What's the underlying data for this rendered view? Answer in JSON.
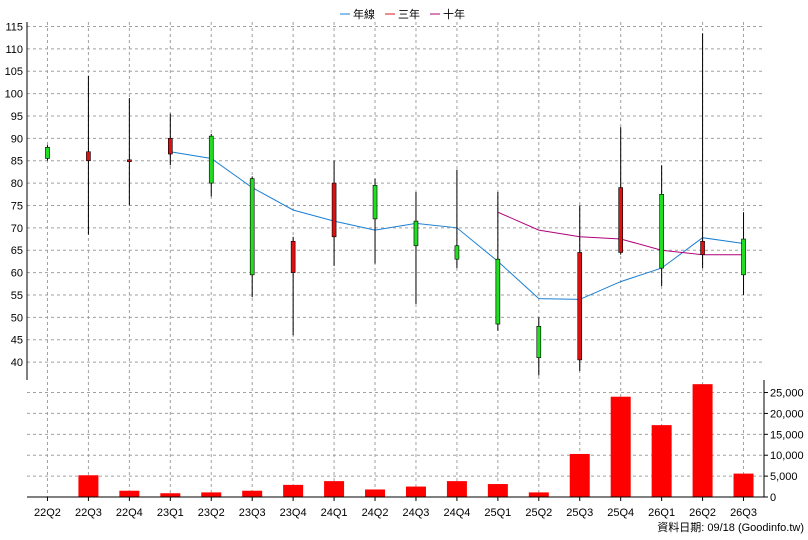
{
  "chart_data": {
    "type": "candlestick",
    "legend": {
      "placement": "top-center",
      "entries": [
        {
          "label": "年線",
          "color": "#1a7fd4"
        },
        {
          "label": "三年",
          "color": "#d41a1a"
        },
        {
          "label": "十年",
          "color": "#b0007a"
        }
      ]
    },
    "categories": [
      "22Q2",
      "22Q3",
      "22Q4",
      "23Q1",
      "23Q2",
      "23Q3",
      "23Q4",
      "24Q1",
      "24Q2",
      "24Q3",
      "24Q4",
      "25Q1",
      "25Q2",
      "25Q3",
      "25Q4",
      "26Q1",
      "26Q2",
      "26Q3"
    ],
    "price_axis": {
      "ylim": [
        36,
        116
      ],
      "ticks": [
        40,
        45,
        50,
        55,
        60,
        65,
        70,
        75,
        80,
        85,
        90,
        95,
        100,
        105,
        110,
        115
      ]
    },
    "volume_axis": {
      "ylim": [
        0,
        28000
      ],
      "ticks": [
        0,
        5000,
        10000,
        15000,
        20000,
        25000
      ],
      "tick_labels": [
        "0",
        "5,000",
        "10,000",
        "15,000",
        "20,000",
        "25,000"
      ]
    },
    "candles": [
      {
        "open": 85.5,
        "high": 88.5,
        "low": 85.0,
        "close": 88.0,
        "color": "green"
      },
      {
        "open": 87.0,
        "high": 104.0,
        "low": 68.5,
        "close": 85.0,
        "color": "red"
      },
      {
        "open": 85.2,
        "high": 99.0,
        "low": 75.0,
        "close": 84.8,
        "color": "red"
      },
      {
        "open": 90.0,
        "high": 95.5,
        "low": 84.0,
        "close": 86.5,
        "color": "red"
      },
      {
        "open": 80.0,
        "high": 91.0,
        "low": 77.0,
        "close": 90.5,
        "color": "green"
      },
      {
        "open": 59.5,
        "high": 81.5,
        "low": 54.5,
        "close": 81.0,
        "color": "green"
      },
      {
        "open": 67.0,
        "high": 68.0,
        "low": 46.0,
        "close": 60.0,
        "color": "red"
      },
      {
        "open": 80.0,
        "high": 85.0,
        "low": 61.5,
        "close": 68.0,
        "color": "red"
      },
      {
        "open": 72.0,
        "high": 81.0,
        "low": 62.0,
        "close": 79.5,
        "color": "green"
      },
      {
        "open": 66.0,
        "high": 78.0,
        "low": 53.0,
        "close": 71.5,
        "color": "green"
      },
      {
        "open": 63.0,
        "high": 83.0,
        "low": 61.0,
        "close": 66.0,
        "color": "green"
      },
      {
        "open": 48.5,
        "high": 78.0,
        "low": 47.0,
        "close": 63.0,
        "color": "green"
      },
      {
        "open": 41.0,
        "high": 50.0,
        "low": 37.0,
        "close": 48.0,
        "color": "green"
      },
      {
        "open": 64.5,
        "high": 75.0,
        "low": 38.0,
        "close": 40.5,
        "color": "red"
      },
      {
        "open": 79.0,
        "high": 92.5,
        "low": 64.0,
        "close": 64.5,
        "color": "red"
      },
      {
        "open": 61.0,
        "high": 84.0,
        "low": 57.0,
        "close": 77.5,
        "color": "green"
      },
      {
        "open": 67.0,
        "high": 113.5,
        "low": 61.0,
        "close": 64.0,
        "color": "red"
      },
      {
        "open": 59.5,
        "high": 73.5,
        "low": 55.0,
        "close": 67.5,
        "color": "green"
      }
    ],
    "series": [
      {
        "name": "年線",
        "color": "#1a7fd4",
        "values": [
          null,
          null,
          null,
          87.0,
          85.5,
          79.0,
          74.0,
          71.5,
          69.5,
          71.0,
          70.0,
          62.5,
          54.2,
          54.0,
          58.0,
          61.0,
          67.8,
          66.5
        ]
      },
      {
        "name": "三年",
        "color": "#d41a1a",
        "values": [
          null,
          null,
          null,
          null,
          null,
          null,
          null,
          null,
          null,
          null,
          null,
          null,
          null,
          null,
          null,
          null,
          null,
          null
        ]
      },
      {
        "name": "十年",
        "color": "#b0007a",
        "values": [
          null,
          null,
          null,
          null,
          null,
          null,
          null,
          null,
          null,
          null,
          null,
          73.5,
          69.5,
          68.0,
          67.5,
          65.0,
          64.0,
          64.0
        ]
      }
    ],
    "volume": [
      100,
      5200,
      1500,
      900,
      1100,
      1500,
      2900,
      3800,
      1800,
      2500,
      3800,
      3100,
      1100,
      10300,
      24000,
      17200,
      27000,
      5600
    ],
    "volume_color": "#ff0000",
    "grid": true,
    "footer_note": "資料日期: 09/18  (Goodinfo.tw)"
  }
}
